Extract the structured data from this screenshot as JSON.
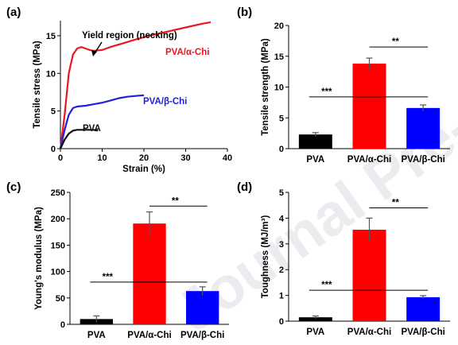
{
  "watermark": "Journal Pre-proof",
  "chart_data": [
    {
      "panel": "(a)",
      "type": "line",
      "xlabel": "Strain (%)",
      "ylabel": "Tensile stress (MPa)",
      "xlim": [
        0,
        40
      ],
      "ylim": [
        0,
        17
      ],
      "xticks": [
        0,
        10,
        20,
        30,
        40
      ],
      "yticks": [
        0,
        5,
        10,
        15
      ],
      "annotation": "Yield region (necking)",
      "series": [
        {
          "name": "PVA/α-Chi",
          "color": "#e8191e",
          "x": [
            0,
            1,
            2,
            3,
            4,
            5,
            6,
            7,
            8,
            10,
            12,
            15,
            18,
            22,
            26,
            30,
            34,
            36
          ],
          "y": [
            0,
            4.5,
            10,
            12.5,
            13.3,
            13.5,
            13.3,
            13.1,
            13.0,
            13.1,
            13.5,
            14.0,
            14.5,
            15.1,
            15.6,
            16.1,
            16.6,
            16.8
          ]
        },
        {
          "name": "PVA/β-Chi",
          "color": "#2020e0",
          "x": [
            0,
            1,
            2,
            3,
            4,
            6,
            8,
            10,
            12,
            14,
            16,
            18,
            20
          ],
          "y": [
            0,
            2.5,
            4.5,
            5.4,
            5.6,
            5.7,
            5.9,
            6.1,
            6.4,
            6.7,
            6.9,
            7.0,
            7.1
          ]
        },
        {
          "name": "PVA",
          "color": "#111111",
          "x": [
            0,
            1,
            2,
            3,
            4,
            5,
            6,
            7,
            8,
            9
          ],
          "y": [
            0,
            1.2,
            2.0,
            2.4,
            2.5,
            2.5,
            2.5,
            2.5,
            2.5,
            2.4
          ]
        }
      ]
    },
    {
      "panel": "(b)",
      "type": "bar",
      "ylabel": "Tensile strength (MPa)",
      "ylim": [
        0,
        20
      ],
      "yticks": [
        0,
        5,
        10,
        15,
        20
      ],
      "categories": [
        "PVA",
        "PVA/α-Chi",
        "PVA/β-Chi"
      ],
      "values": [
        2.3,
        13.8,
        6.6
      ],
      "errors": [
        0.3,
        0.9,
        0.5
      ],
      "colors": [
        "#000000",
        "#ff0000",
        "#0000ff"
      ],
      "sig": [
        {
          "label": "***",
          "from": 0,
          "to": 2,
          "y": 8.4
        },
        {
          "label": "**",
          "from": 1,
          "to": 2,
          "y": 16.5
        }
      ]
    },
    {
      "panel": "(c)",
      "type": "bar",
      "ylabel": "Young's modulus (MPa)",
      "ylim": [
        0,
        250
      ],
      "yticks": [
        0,
        50,
        100,
        150,
        200,
        250
      ],
      "categories": [
        "PVA",
        "PVA/α-Chi",
        "PVA/β-Chi"
      ],
      "values": [
        10,
        191,
        63
      ],
      "errors": [
        6,
        22,
        8
      ],
      "colors": [
        "#000000",
        "#ff0000",
        "#0000ff"
      ],
      "sig": [
        {
          "label": "***",
          "from": 0,
          "to": 2,
          "y": 80
        },
        {
          "label": "**",
          "from": 1,
          "to": 2,
          "y": 224
        }
      ]
    },
    {
      "panel": "(d)",
      "type": "bar",
      "ylabel": "Toughness (MJ/m³)",
      "ylim": [
        0,
        5
      ],
      "yticks": [
        0,
        1,
        2,
        3,
        4,
        5
      ],
      "categories": [
        "PVA",
        "PVA/α-Chi",
        "PVA/β-Chi"
      ],
      "values": [
        0.15,
        3.55,
        0.93
      ],
      "errors": [
        0.05,
        0.45,
        0.06
      ],
      "colors": [
        "#000000",
        "#ff0000",
        "#0000ff"
      ],
      "sig": [
        {
          "label": "***",
          "from": 0,
          "to": 2,
          "y": 1.2
        },
        {
          "label": "**",
          "from": 1,
          "to": 2,
          "y": 4.4
        }
      ]
    }
  ]
}
